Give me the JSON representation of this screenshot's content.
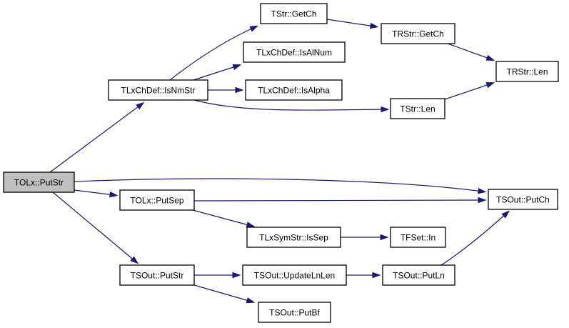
{
  "graph": {
    "edge_color": "#191970",
    "root_fill": "#bfbfbf",
    "nodes": {
      "putstr": "TOLx::PutStr",
      "isnmstr": "TLxChDef::IsNmStr",
      "tstr_getch": "TStr::GetCh",
      "isalnum": "TLxChDef::IsAlNum",
      "isalpha": "TLxChDef::IsAlpha",
      "trstr_getch": "TRStr::GetCh",
      "trstr_len": "TRStr::Len",
      "tstr_len": "TStr::Len",
      "putsep": "TOLx::PutSep",
      "putch": "TSOut::PutCh",
      "issep": "TLxSymStr::IsSep",
      "tfset_in": "TFSet::In",
      "tsout_putstr": "TSOut::PutStr",
      "updatelnlen": "TSOut::UpdateLnLen",
      "putln": "TSOut::PutLn",
      "putbf": "TSOut::PutBf"
    }
  }
}
